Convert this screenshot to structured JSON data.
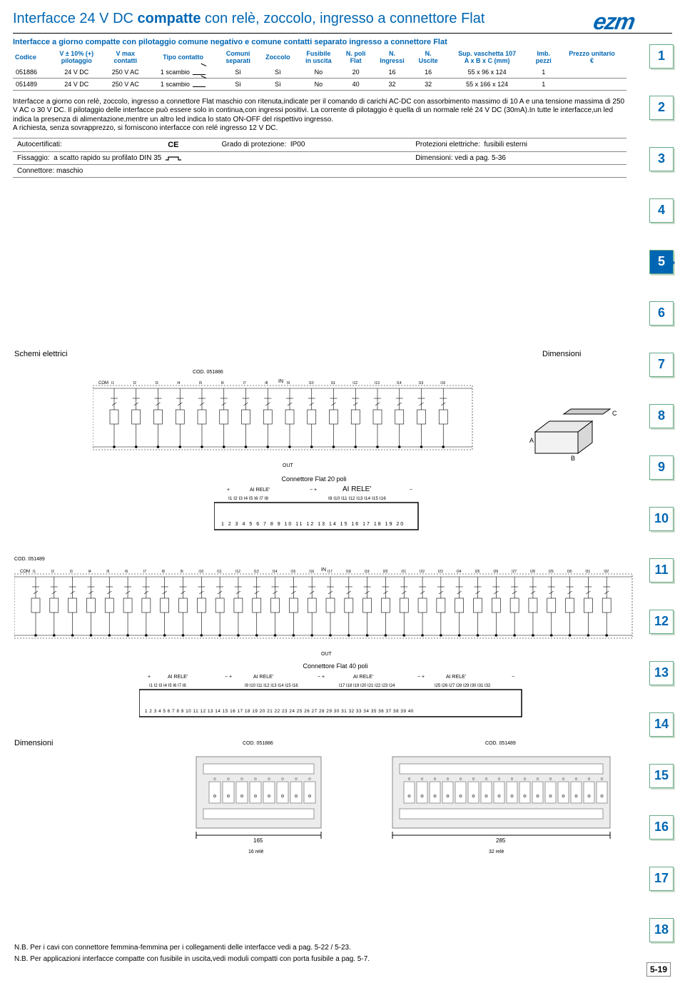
{
  "brand": "ezm",
  "title_prefix": "Interfacce 24 V DC ",
  "title_bold": "compatte",
  "title_suffix": " con relè, zoccolo, ingresso a connettore Flat",
  "subtitle": "Interfacce a giorno compatte con pilotaggio comune negativo e comune contatti separato ingresso a connettore Flat",
  "spec_headers": {
    "codice": "Codice",
    "vpilot": "V ± 10% (+)\npilotaggio",
    "vmax": "V max\ncontatti",
    "tipo": "Tipo contatto",
    "comuni": "Comuni\nseparati",
    "zoccolo": "Zoccolo",
    "fusibile": "Fusibile\nin uscita",
    "npoli": "N. poli\nFlat",
    "ningressi": "N.\nIngressi",
    "nuscite": "N.\nUscite",
    "sup": "Sup. vaschetta 107\nA x B x C (mm)",
    "imb": "Imb.\npezzi",
    "prezzo": "Prezzo unitario\n€"
  },
  "spec_rows": [
    {
      "codice": "051886",
      "vpilot": "24 V DC",
      "vmax": "250 V AC",
      "tipo": "1 scambio",
      "comuni": "Sì",
      "zoccolo": "Sì",
      "fusibile": "No",
      "npoli": "20",
      "ningressi": "16",
      "nuscite": "16",
      "sup": "55 x 96 x 124",
      "imb": "1",
      "prezzo": ""
    },
    {
      "codice": "051489",
      "vpilot": "24 V DC",
      "vmax": "250 V AC",
      "tipo": "1 scambio",
      "comuni": "Sì",
      "zoccolo": "Sì",
      "fusibile": "No",
      "npoli": "40",
      "ningressi": "32",
      "nuscite": "32",
      "sup": "55 x 166 x 124",
      "imb": "1",
      "prezzo": ""
    }
  ],
  "description": "Interfacce a giorno con relè, zoccolo, ingresso a connettore Flat maschio con ritenuta,indicate per il comando di carichi AC-DC con assorbimento massimo di 10 A e una tensione massima di 250 V AC o 30 V DC. Il pilotaggio delle interfacce può essere solo in continua,con ingressi positivi. La corrente di pilotaggio è quella di un normale relé 24 V DC (30mA).In tutte le interfacce,un led indica la presenza di alimentazione,mentre un altro led indica lo stato ON-OFF del rispettivo ingresso.\nA richiesta, senza sovrapprezzo, si forniscono interfacce con relé ingresso 12 V DC.",
  "info_table": {
    "autocert": "Autocertificati:",
    "grado_label": "Grado di protezione:",
    "grado_val": "IP00",
    "prot_label": "Protezioni elettriche:",
    "prot_val": "fusibili esterni",
    "fissaggio_label": "Fissaggio:",
    "fissaggio_val": "a scatto rapido su profilato DIN 35",
    "dim_label": "Dimensioni: vedi a pag. 5-36",
    "connettore": "Connettore: maschio"
  },
  "schemi_label": "Schemi elettrici",
  "dimensioni_label": "Dimensioni",
  "cod886": "COD. 051886",
  "cod489": "COD. 051489",
  "conn20_label": "Connettore Flat 20 poli",
  "conn40_label": "Connettore Flat 40 poli",
  "conn20_nums": "1 2 3 4 5 6 7 8 9 10 11 12 13 14 15 16 17 18 19 20",
  "conn40_nums": "1 2 3 4 5 6 7 8 9 10 11 12 13 14 15 16 17 18 19 20 21 22 23 24 25 26 27 28 29 30 31 32 33 34 35 36 37 38 39 40",
  "rele_label": "AI RELE'",
  "rele_i_16a": "I1 I2 I3 I4 I5 I6 I7 I8",
  "rele_i_16b": "I9 I10 I11 I12 I13 I14 I15 I16",
  "rele_i_32a": "I1 I2 I3 I4 I5 I6 I7 I8",
  "rele_i_32b": "I9 I10 I11 I12 I13 I14 I15 I16",
  "rele_i_32c": "I17 I18 I19 I20 I21 I22 I23 I24",
  "rele_i_32d": "I25 I26 I27 I28 I29 I30 I31 I32",
  "dim_165": "165",
  "dim_285": "285",
  "dim_16rele": "16 relè",
  "dim_32rele": "32 relè",
  "iso_A": "A",
  "iso_B": "B",
  "iso_C": "C",
  "side_tabs": [
    "1",
    "2",
    "3",
    "4",
    "5",
    "6",
    "7",
    "8",
    "9",
    "10",
    "11",
    "12",
    "13",
    "14",
    "15",
    "16",
    "17",
    "18"
  ],
  "side_active": "5",
  "footer1": "N.B. Per i cavi con connettore femmina-femmina per i collegamenti delle interfacce vedi a pag. 5-22 / 5-23.",
  "footer2": "N.B. Per applicazioni interfacce compatte con fusibile in uscita,vedi moduli compatti con porta fusibile a pag. 5-7.",
  "page_num": "5-19",
  "colors": {
    "brand_blue": "#0066b3",
    "border_gray": "#888888",
    "tab_border": "#66aa88"
  }
}
